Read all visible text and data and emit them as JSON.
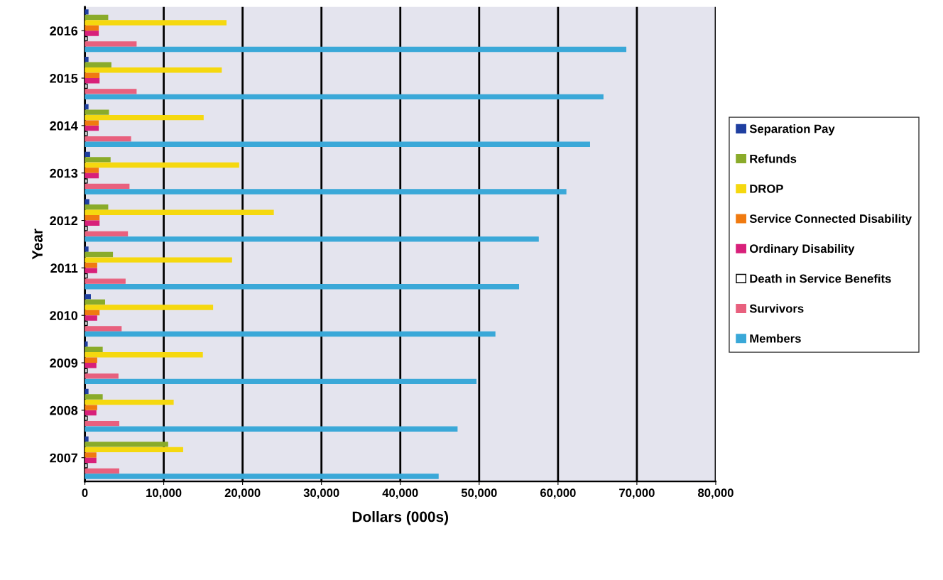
{
  "chart_data": {
    "type": "bar",
    "orientation": "horizontal",
    "xlabel": "Dollars (000s)",
    "ylabel": "Year",
    "categories": [
      "2016",
      "2015",
      "2014",
      "2013",
      "2012",
      "2011",
      "2010",
      "2009",
      "2008",
      "2007"
    ],
    "series": [
      {
        "name": "Separation Pay",
        "color": "#1f3fa0",
        "values": [
          400,
          400,
          400,
          600,
          500,
          400,
          700,
          300,
          400,
          400
        ]
      },
      {
        "name": "Refunds",
        "color": "#8aab2a",
        "values": [
          2900,
          3300,
          3000,
          3200,
          2900,
          3500,
          2500,
          2200,
          2200,
          10500
        ]
      },
      {
        "name": "DROP",
        "color": "#f5d80f",
        "values": [
          17900,
          17300,
          15000,
          19500,
          23900,
          18600,
          16200,
          14900,
          11200,
          12400
        ]
      },
      {
        "name": "Service Connected Disability",
        "color": "#f07a10",
        "values": [
          1700,
          1800,
          1700,
          1700,
          1800,
          1500,
          1800,
          1500,
          1500,
          1400
        ]
      },
      {
        "name": "Ordinary Disability",
        "color": "#d8207a",
        "values": [
          1700,
          1800,
          1700,
          1700,
          1800,
          1500,
          1500,
          1400,
          1400,
          1400
        ]
      },
      {
        "name": "Death in Service Benefits",
        "color": "#ffffff",
        "values": [
          300,
          300,
          300,
          300,
          300,
          300,
          300,
          300,
          300,
          300
        ]
      },
      {
        "name": "Survivors",
        "color": "#e8607e",
        "values": [
          6500,
          6500,
          5800,
          5600,
          5400,
          5100,
          4600,
          4200,
          4300,
          4300
        ]
      },
      {
        "name": "Members",
        "color": "#3aa8d8",
        "values": [
          68600,
          65700,
          64000,
          61000,
          57500,
          55000,
          52000,
          49600,
          47200,
          44800
        ]
      }
    ],
    "xlim": [
      0,
      80000
    ],
    "xticks": [
      {
        "value": 0,
        "label": "0"
      },
      {
        "value": 10000,
        "label": "10,000"
      },
      {
        "value": 20000,
        "label": "20,000"
      },
      {
        "value": 30000,
        "label": "30,000"
      },
      {
        "value": 40000,
        "label": "40,000"
      },
      {
        "value": 50000,
        "label": "50,000"
      },
      {
        "value": 60000,
        "label": "60,000"
      },
      {
        "value": 70000,
        "label": "70,000"
      },
      {
        "value": 80000,
        "label": "80,000"
      }
    ],
    "grid": "x",
    "legend": "right"
  }
}
